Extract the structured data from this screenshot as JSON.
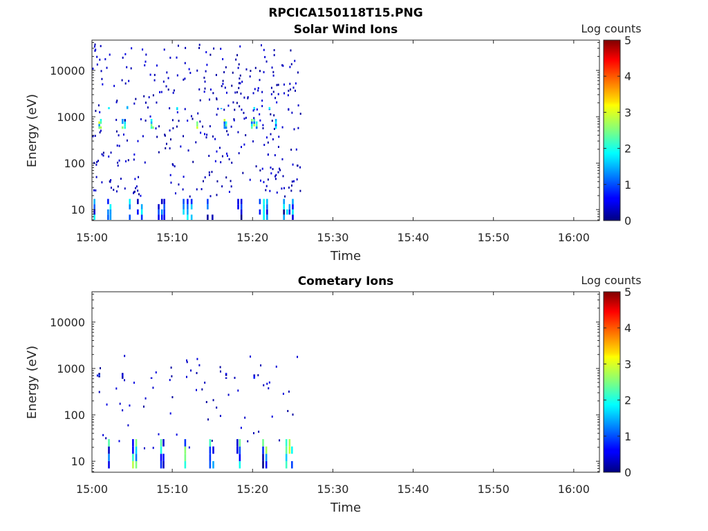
{
  "figure_title": "RPCICA150118T15.PNG",
  "colorbar": {
    "label": "Log counts",
    "min": 0,
    "max": 5,
    "ticks": [
      "0",
      "1",
      "2",
      "3",
      "4",
      "5"
    ],
    "colormap": "jet"
  },
  "chart_data": [
    {
      "type": "heatmap",
      "title": "Solar Wind Ions",
      "xlabel": "Time",
      "ylabel": "Energy (eV)",
      "x_tick_labels": [
        "15:00",
        "15:10",
        "15:20",
        "15:30",
        "15:40",
        "15:50",
        "16:00"
      ],
      "x_ticks_min": [
        0,
        10,
        20,
        30,
        40,
        50,
        60
      ],
      "xlim_min": [
        0,
        63.2
      ],
      "y_scale": "log",
      "y_tick_labels": [
        "10",
        "100",
        "1000",
        "10000"
      ],
      "y_ticks": [
        10,
        100,
        1000,
        10000
      ],
      "ylim": [
        5.8,
        45000
      ],
      "data_end_min": 26,
      "bands": [
        {
          "name": "low-energy",
          "e_min": 6,
          "e_max": 17,
          "level_range": [
            0,
            2
          ],
          "columns_min": [
            0.2,
            1.9,
            2.2,
            4.6,
            5.6,
            6.1,
            8.2,
            8.6,
            8.9,
            11.3,
            11.8,
            12.3,
            14.3,
            14.9,
            18.1,
            18.5,
            20.8,
            21.3,
            21.7,
            23.8,
            24.2,
            24.5,
            24.9
          ]
        },
        {
          "name": "solar-wind-peak",
          "e_min": 550,
          "e_max": 900,
          "level_range": [
            1,
            3
          ],
          "columns_min": [
            0.8,
            1.0,
            3.7,
            4.0,
            7.3,
            7.5,
            13.0,
            16.4,
            16.6,
            19.8,
            20.1,
            20.4,
            22.8
          ]
        },
        {
          "name": "secondary",
          "e_min": 1400,
          "e_max": 1700,
          "level_range": [
            1,
            2
          ],
          "columns_min": [
            2.0,
            4.3,
            10.5,
            16.0,
            20.1,
            22.0
          ]
        }
      ],
      "scatter_density": "sparse"
    },
    {
      "type": "heatmap",
      "title": "Cometary Ions",
      "xlabel": "Time",
      "ylabel": "Energy (eV)",
      "x_tick_labels": [
        "15:00",
        "15:10",
        "15:20",
        "15:30",
        "15:40",
        "15:50",
        "16:00"
      ],
      "x_ticks_min": [
        0,
        10,
        20,
        30,
        40,
        50,
        60
      ],
      "xlim_min": [
        0,
        63.2
      ],
      "y_scale": "log",
      "y_tick_labels": [
        "10",
        "100",
        "1000",
        "10000"
      ],
      "y_ticks": [
        10,
        100,
        1000,
        10000
      ],
      "ylim": [
        5.8,
        45000
      ],
      "data_end_min": 26,
      "bands": [
        {
          "name": "low-energy",
          "e_min": 7,
          "e_max": 30,
          "level_range": [
            0,
            3
          ],
          "columns_min": [
            2.0,
            5.0,
            5.4,
            8.5,
            8.8,
            11.0,
            11.5,
            14.6,
            15.0,
            18.0,
            18.3,
            21.2,
            21.6,
            24.1,
            24.5,
            24.8
          ]
        },
        {
          "name": "mid",
          "e_min": 600,
          "e_max": 800,
          "level_range": [
            0,
            1
          ],
          "columns_min": [
            0.8,
            3.7,
            7.3,
            16.6,
            20.1
          ]
        }
      ],
      "scatter_density": "very sparse"
    }
  ]
}
